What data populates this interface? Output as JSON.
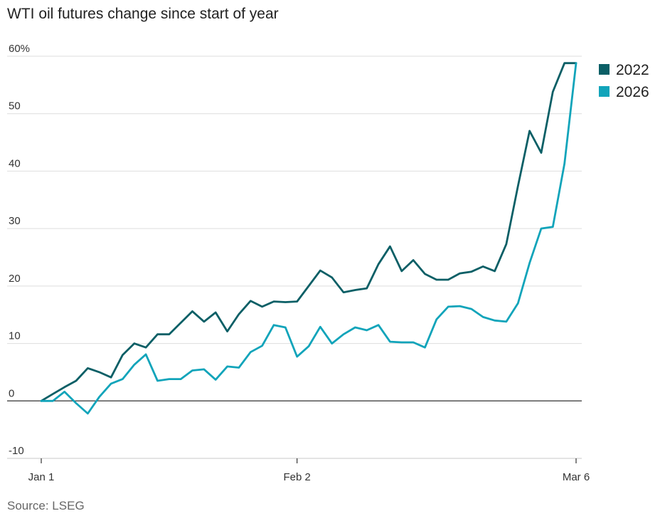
{
  "title": "WTI oil futures change since start of year",
  "source": "Source: LSEG",
  "chart_data": {
    "type": "line",
    "title": "WTI oil futures change since start of year",
    "xlabel": "",
    "ylabel": "",
    "y_unit": "%",
    "ylim": [
      -10,
      60
    ],
    "yticks": [
      -10,
      0,
      10,
      20,
      30,
      40,
      50,
      60
    ],
    "ytick_labels": [
      "-10",
      "0",
      "10",
      "20",
      "30",
      "40",
      "50",
      "60%"
    ],
    "x_tick_labels": [
      "Jan 1",
      "Feb 2",
      "Mar 6"
    ],
    "x_tick_positions": [
      0,
      22,
      46
    ],
    "grid": "horizontal",
    "legend_position": "top-right",
    "x_scale": "trading days since Jan 1",
    "series": [
      {
        "name": "2022",
        "color": "#0b5f66",
        "x": [
          0,
          1,
          2,
          3,
          4,
          5,
          6,
          7,
          8,
          9,
          10,
          11,
          12,
          13,
          14,
          15,
          16,
          17,
          18,
          19,
          20,
          21,
          22,
          23,
          24,
          25,
          26,
          27,
          28,
          29,
          30,
          31,
          32,
          33,
          34,
          35,
          36,
          37,
          38,
          39,
          40,
          41,
          42,
          43,
          44,
          45,
          46
        ],
        "values": [
          0,
          1.2,
          2.4,
          3.5,
          5.7,
          5,
          4.1,
          8,
          10,
          9.3,
          11.6,
          11.6,
          13.6,
          15.6,
          13.8,
          15.4,
          12.1,
          15.1,
          17.4,
          16.4,
          17.3,
          17.2,
          17.3,
          20,
          22.7,
          21.5,
          18.9,
          19.3,
          19.6,
          23.8,
          26.9,
          22.6,
          24.5,
          22.1,
          21.1,
          21.1,
          22.2,
          22.5,
          23.4,
          22.6,
          27.3,
          37.4,
          47,
          43.2,
          53.8,
          58.8,
          58.8
        ]
      },
      {
        "name": "2026",
        "color": "#11a4ba",
        "x": [
          0,
          1,
          2,
          3,
          4,
          5,
          6,
          7,
          8,
          9,
          10,
          11,
          12,
          13,
          14,
          15,
          16,
          17,
          18,
          19,
          20,
          21,
          22,
          23,
          24,
          25,
          26,
          27,
          28,
          29,
          30,
          31,
          32,
          33,
          34,
          35,
          36,
          37,
          38,
          39,
          40,
          41,
          42,
          43,
          44,
          45,
          46
        ],
        "values": [
          0,
          0,
          1.6,
          -0.4,
          -2.2,
          0.7,
          3,
          3.8,
          6.3,
          8.1,
          3.5,
          3.8,
          3.8,
          5.3,
          5.5,
          3.7,
          6,
          5.8,
          8.5,
          9.6,
          13.2,
          12.8,
          7.7,
          9.5,
          12.9,
          10,
          11.6,
          12.8,
          12.3,
          13.2,
          10.3,
          10.2,
          10.2,
          9.3,
          14.2,
          16.4,
          16.5,
          16,
          14.6,
          14,
          13.8,
          17,
          24,
          30,
          30.3,
          41.3,
          58.8
        ]
      }
    ]
  }
}
